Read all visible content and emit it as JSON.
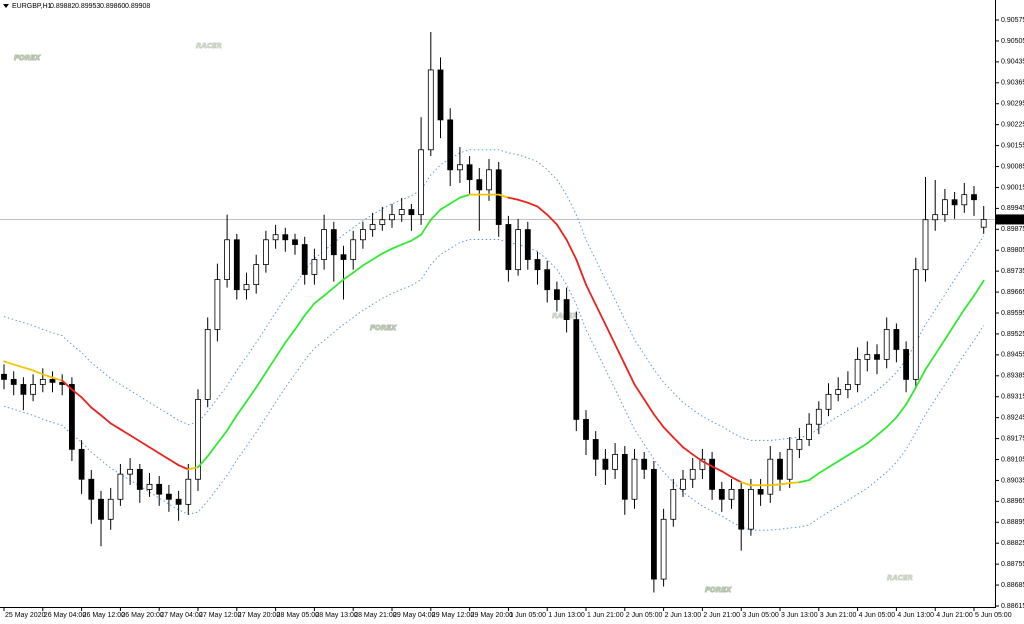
{
  "chart_data": {
    "type": "candlestick",
    "header": {
      "symbol": "EURGBP,H1",
      "ohlc": [
        "0.89882",
        "0.89953",
        "0.89860",
        "0.89908"
      ]
    },
    "watermark": {
      "brand": "FOREX",
      "tag": "RACER"
    },
    "categories": [
      "25 May 2020",
      null,
      null,
      null,
      "26 May 04:00",
      null,
      null,
      null,
      "26 May 12:00",
      null,
      null,
      null,
      "26 May 20:00",
      null,
      null,
      null,
      "27 May 04:00",
      null,
      null,
      null,
      "27 May 12:00",
      null,
      null,
      null,
      "27 May 20:00",
      null,
      null,
      null,
      "28 May 05:00",
      null,
      null,
      null,
      "28 May 13:00",
      null,
      null,
      null,
      "28 May 21:00",
      null,
      null,
      null,
      "29 May 04:00",
      null,
      null,
      null,
      "29 May 12:00",
      null,
      null,
      null,
      "29 May 20:00",
      null,
      null,
      null,
      "1 Jun 05:00",
      null,
      null,
      null,
      "1 Jun 13:00",
      null,
      null,
      null,
      "1 Jun 21:00",
      null,
      null,
      null,
      "2 Jun 05:00",
      null,
      null,
      null,
      "2 Jun 13:00",
      null,
      null,
      null,
      "2 Jun 21:00",
      null,
      null,
      null,
      "3 Jun 05:00",
      null,
      null,
      null,
      "3 Jun 13:00",
      null,
      null,
      null,
      "3 Jun 21:00",
      null,
      null,
      null,
      "4 Jun 05:00",
      null,
      null,
      null,
      "4 Jun 13:00",
      null,
      null,
      null,
      "4 Jun 21:00",
      null,
      null,
      null,
      "5 Jun 05:00",
      null
    ],
    "open": [
      0.8939,
      0.89373,
      0.89356,
      0.89323,
      0.89356,
      0.89373,
      0.89363,
      0.89356,
      0.89139,
      0.89039,
      0.88972,
      0.88905,
      0.88972,
      0.89056,
      0.89072,
      0.89005,
      0.89022,
      0.88989,
      0.88972,
      0.88955,
      0.89039,
      0.89306,
      0.8954,
      0.89707,
      0.8984,
      0.89673,
      0.8969,
      0.89757,
      0.8984,
      0.89857,
      0.8984,
      0.89824,
      0.89724,
      0.89774,
      0.89874,
      0.8979,
      0.89774,
      0.8984,
      0.89874,
      0.89891,
      0.89907,
      0.89924,
      0.89941,
      0.89924,
      0.90141,
      0.90408,
      0.90241,
      0.90074,
      0.90091,
      0.90041,
      0.90007,
      0.90074,
      0.89891,
      0.8974,
      0.89874,
      0.89774,
      0.8974,
      0.89673,
      0.8964,
      0.89573,
      0.89239,
      0.89172,
      0.89106,
      0.89072,
      0.89122,
      0.88972,
      0.89106,
      0.89072,
      0.88705,
      0.88905,
      0.89005,
      0.89039,
      0.89072,
      0.89106,
      0.89005,
      0.88972,
      0.89005,
      0.88872,
      0.89005,
      0.88989,
      0.89106,
      0.89039,
      0.89139,
      0.89172,
      0.89223,
      0.89273,
      0.89323,
      0.89339,
      0.89356,
      0.8944,
      0.89456,
      0.8944,
      0.8954,
      0.89473,
      0.89373,
      0.8974,
      0.89907,
      0.89924,
      0.89974,
      0.89957,
      0.89991,
      0.89882
    ],
    "high": [
      0.89423,
      0.894,
      0.8938,
      0.8939,
      0.8941,
      0.894,
      0.8939,
      0.8938,
      0.8917,
      0.8907,
      0.89,
      0.8901,
      0.8909,
      0.8911,
      0.8909,
      0.8906,
      0.8905,
      0.8902,
      0.89,
      0.8909,
      0.8934,
      0.8958,
      0.8976,
      0.89924,
      0.8986,
      0.8973,
      0.8979,
      0.8987,
      0.8989,
      0.8988,
      0.8986,
      0.8985,
      0.8981,
      0.89924,
      0.899,
      0.8982,
      0.8987,
      0.899,
      0.8993,
      0.8995,
      0.8996,
      0.8998,
      0.8996,
      0.9025,
      0.90535,
      0.9045,
      0.9028,
      0.9015,
      0.9012,
      0.9008,
      0.9011,
      0.901,
      0.8992,
      0.8991,
      0.899,
      0.898,
      0.8977,
      0.897,
      0.8968,
      0.896,
      0.8927,
      0.892,
      0.8914,
      0.8916,
      0.8915,
      0.8914,
      0.8913,
      0.891,
      0.8894,
      0.8904,
      0.8907,
      0.8911,
      0.8914,
      0.8913,
      0.8903,
      0.8904,
      0.8903,
      0.8904,
      0.8904,
      0.8915,
      0.8913,
      0.8918,
      0.8921,
      0.8926,
      0.893,
      0.8936,
      0.8938,
      0.894,
      0.8948,
      0.895,
      0.8949,
      0.8958,
      0.8956,
      0.895,
      0.8978,
      0.9005,
      0.9004,
      0.9001,
      0.9,
      0.9003,
      0.9002,
      0.89953
    ],
    "low": [
      0.8934,
      0.8932,
      0.8927,
      0.893,
      0.8933,
      0.8933,
      0.8932,
      0.891,
      0.8899,
      0.8889,
      0.88815,
      0.8887,
      0.8895,
      0.8902,
      0.8896,
      0.8898,
      0.8895,
      0.8893,
      0.889,
      0.8892,
      0.89,
      0.8928,
      0.895,
      0.8968,
      0.8964,
      0.8964,
      0.8966,
      0.8973,
      0.8981,
      0.898,
      0.8979,
      0.8969,
      0.8969,
      0.8974,
      0.897,
      0.8964,
      0.8974,
      0.8981,
      0.8985,
      0.8987,
      0.8988,
      0.899,
      0.8987,
      0.8989,
      0.9012,
      0.9018,
      0.9002,
      0.9003,
      0.8999,
      0.8987,
      0.8997,
      0.8985,
      0.897,
      0.8972,
      0.8974,
      0.8969,
      0.8963,
      0.896,
      0.8953,
      0.892,
      0.8912,
      0.8905,
      0.8902,
      0.8904,
      0.8892,
      0.8894,
      0.8904,
      0.8866,
      0.8868,
      0.8888,
      0.8898,
      0.8901,
      0.8904,
      0.8897,
      0.8893,
      0.8894,
      0.888,
      0.8885,
      0.8895,
      0.8896,
      0.89,
      0.8901,
      0.8911,
      0.8915,
      0.8919,
      0.8925,
      0.893,
      0.8931,
      0.8933,
      0.894,
      0.8939,
      0.8941,
      0.8943,
      0.8933,
      0.8935,
      0.897,
      0.8987,
      0.899,
      0.8991,
      0.8993,
      0.8992,
      0.8986
    ],
    "close": [
      0.89373,
      0.89356,
      0.89323,
      0.89356,
      0.89373,
      0.89363,
      0.89356,
      0.89139,
      0.89039,
      0.88972,
      0.88905,
      0.88972,
      0.89056,
      0.89072,
      0.89005,
      0.89022,
      0.88989,
      0.88972,
      0.88955,
      0.89039,
      0.89306,
      0.8954,
      0.89707,
      0.8984,
      0.89673,
      0.8969,
      0.89757,
      0.8984,
      0.89857,
      0.8984,
      0.89824,
      0.89724,
      0.89774,
      0.89874,
      0.8979,
      0.89774,
      0.8984,
      0.89874,
      0.89891,
      0.89907,
      0.89924,
      0.89941,
      0.89924,
      0.90141,
      0.90408,
      0.90241,
      0.90074,
      0.90091,
      0.90041,
      0.90007,
      0.90074,
      0.89891,
      0.8974,
      0.89874,
      0.89774,
      0.8974,
      0.89673,
      0.8964,
      0.89573,
      0.89239,
      0.89172,
      0.89106,
      0.89072,
      0.89122,
      0.88972,
      0.89106,
      0.89072,
      0.88705,
      0.88905,
      0.89005,
      0.89039,
      0.89072,
      0.89106,
      0.89005,
      0.88972,
      0.89005,
      0.88872,
      0.89005,
      0.88989,
      0.89106,
      0.89039,
      0.89139,
      0.89172,
      0.89223,
      0.89273,
      0.89323,
      0.89339,
      0.89356,
      0.8944,
      0.89456,
      0.8944,
      0.8954,
      0.89473,
      0.89373,
      0.8974,
      0.89907,
      0.89924,
      0.89974,
      0.89957,
      0.89991,
      0.89974,
      0.89908
    ],
    "up_color": "#ffffff",
    "down_color": "#000000",
    "wick_color": "#000000",
    "ma": {
      "values": [
        0.89433,
        0.89423,
        0.89413,
        0.89403,
        0.8939,
        0.89379,
        0.89369,
        0.89339,
        0.89313,
        0.89279,
        0.89253,
        0.89226,
        0.89206,
        0.89186,
        0.89166,
        0.89146,
        0.89126,
        0.89106,
        0.89086,
        0.89072,
        0.89079,
        0.89116,
        0.89159,
        0.89202,
        0.89253,
        0.89299,
        0.89346,
        0.89396,
        0.89446,
        0.89496,
        0.8954,
        0.89587,
        0.89627,
        0.89653,
        0.8968,
        0.89707,
        0.8973,
        0.89754,
        0.89774,
        0.89794,
        0.8981,
        0.89824,
        0.89837,
        0.89857,
        0.89907,
        0.89941,
        0.89961,
        0.89981,
        0.89991,
        0.89991,
        0.89991,
        0.89991,
        0.89981,
        0.89974,
        0.89964,
        0.89951,
        0.89924,
        0.89891,
        0.8984,
        0.89774,
        0.8969,
        0.89623,
        0.89557,
        0.8949,
        0.89423,
        0.89356,
        0.89306,
        0.89256,
        0.89213,
        0.89179,
        0.89146,
        0.89122,
        0.89099,
        0.89082,
        0.89066,
        0.89046,
        0.89029,
        0.89019,
        0.89019,
        0.89019,
        0.89022,
        0.89026,
        0.89029,
        0.89036,
        0.89059,
        0.89079,
        0.89099,
        0.89119,
        0.89139,
        0.89159,
        0.89186,
        0.89213,
        0.89246,
        0.89289,
        0.89346,
        0.89406,
        0.89456,
        0.89506,
        0.89557,
        0.89607,
        0.89653,
        0.89703
      ],
      "colors": [
        "#f5c400",
        "#f5c400",
        "#f5c400",
        "#f5c400",
        "#f5c400",
        "#f5c400",
        "#f5c400",
        "#e8231f",
        "#e8231f",
        "#e8231f",
        "#e8231f",
        "#e8231f",
        "#e8231f",
        "#e8231f",
        "#e8231f",
        "#e8231f",
        "#e8231f",
        "#e8231f",
        "#e8231f",
        "#e8231f",
        "#f5c400",
        "#33e833",
        "#33e833",
        "#33e833",
        "#33e833",
        "#33e833",
        "#33e833",
        "#33e833",
        "#33e833",
        "#33e833",
        "#33e833",
        "#33e833",
        "#33e833",
        "#33e833",
        "#33e833",
        "#33e833",
        "#33e833",
        "#33e833",
        "#33e833",
        "#33e833",
        "#33e833",
        "#33e833",
        "#33e833",
        "#33e833",
        "#33e833",
        "#33e833",
        "#33e833",
        "#33e833",
        "#33e833",
        "#f5c400",
        "#f5c400",
        "#f5c400",
        "#f5c400",
        "#e8231f",
        "#e8231f",
        "#e8231f",
        "#e8231f",
        "#e8231f",
        "#e8231f",
        "#e8231f",
        "#e8231f",
        "#e8231f",
        "#e8231f",
        "#e8231f",
        "#e8231f",
        "#e8231f",
        "#e8231f",
        "#e8231f",
        "#e8231f",
        "#e8231f",
        "#e8231f",
        "#e8231f",
        "#e8231f",
        "#e8231f",
        "#e8231f",
        "#e8231f",
        "#e8231f",
        "#f5c400",
        "#f5c400",
        "#f5c400",
        "#f5c400",
        "#f5c400",
        "#f5c400",
        "#33e833",
        "#33e833",
        "#33e833",
        "#33e833",
        "#33e833",
        "#33e833",
        "#33e833",
        "#33e833",
        "#33e833",
        "#33e833",
        "#33e833",
        "#33e833",
        "#33e833",
        "#33e833",
        "#33e833",
        "#33e833",
        "#33e833",
        "#33e833",
        "#33e833"
      ]
    },
    "upper_band": {
      "color": "#5b9bd5",
      "values": [
        0.89583,
        0.89573,
        0.89563,
        0.89553,
        0.8954,
        0.89529,
        0.89519,
        0.89489,
        0.89463,
        0.89429,
        0.89403,
        0.89376,
        0.89356,
        0.89336,
        0.89316,
        0.89296,
        0.89276,
        0.89256,
        0.89236,
        0.89222,
        0.89229,
        0.89266,
        0.89309,
        0.89352,
        0.89403,
        0.89449,
        0.89496,
        0.89546,
        0.89596,
        0.89646,
        0.8969,
        0.89737,
        0.89777,
        0.89803,
        0.8983,
        0.89857,
        0.8988,
        0.89904,
        0.89924,
        0.89944,
        0.8996,
        0.89974,
        0.89987,
        0.90007,
        0.90057,
        0.90091,
        0.90111,
        0.90131,
        0.90141,
        0.90141,
        0.90141,
        0.90141,
        0.90131,
        0.90124,
        0.90114,
        0.90101,
        0.90074,
        0.90041,
        0.8999,
        0.89924,
        0.8984,
        0.89773,
        0.89707,
        0.8964,
        0.89573,
        0.89506,
        0.89456,
        0.89406,
        0.89363,
        0.89329,
        0.89296,
        0.89272,
        0.89249,
        0.89232,
        0.89216,
        0.89196,
        0.89179,
        0.89169,
        0.89169,
        0.89169,
        0.89172,
        0.89176,
        0.89179,
        0.89186,
        0.89209,
        0.89229,
        0.89249,
        0.89269,
        0.89289,
        0.89309,
        0.89336,
        0.89363,
        0.89396,
        0.89439,
        0.89496,
        0.89556,
        0.89606,
        0.89656,
        0.89707,
        0.89757,
        0.89803,
        0.89853
      ]
    },
    "lower_band": {
      "color": "#5b9bd5",
      "values": [
        0.89283,
        0.89273,
        0.89263,
        0.89253,
        0.8924,
        0.89229,
        0.89219,
        0.89189,
        0.89163,
        0.89129,
        0.89103,
        0.89076,
        0.89056,
        0.89036,
        0.89016,
        0.88996,
        0.88976,
        0.88956,
        0.88936,
        0.88922,
        0.88929,
        0.88966,
        0.89009,
        0.89052,
        0.89103,
        0.89149,
        0.89196,
        0.89246,
        0.89296,
        0.89346,
        0.8939,
        0.89437,
        0.89477,
        0.89503,
        0.8953,
        0.89557,
        0.8958,
        0.89604,
        0.89624,
        0.89644,
        0.8966,
        0.89674,
        0.89687,
        0.89707,
        0.89757,
        0.89791,
        0.89811,
        0.89831,
        0.89841,
        0.89841,
        0.89841,
        0.89841,
        0.89831,
        0.89824,
        0.89814,
        0.89801,
        0.89774,
        0.89741,
        0.8969,
        0.89624,
        0.8954,
        0.89473,
        0.89407,
        0.8934,
        0.89273,
        0.89206,
        0.89156,
        0.89106,
        0.89063,
        0.89029,
        0.88996,
        0.88972,
        0.88949,
        0.88932,
        0.88916,
        0.88896,
        0.88879,
        0.88869,
        0.88869,
        0.88869,
        0.88872,
        0.88876,
        0.88879,
        0.88886,
        0.88909,
        0.88929,
        0.88949,
        0.88969,
        0.88989,
        0.89009,
        0.89036,
        0.89063,
        0.89096,
        0.89139,
        0.89196,
        0.89256,
        0.89306,
        0.89356,
        0.89407,
        0.89457,
        0.89503,
        0.89553
      ]
    },
    "price_line_color": "#c0c0c0",
    "ylim": [
      0.88615,
      0.90642
    ],
    "yticks": [
      0.90575,
      0.90505,
      0.90435,
      0.90365,
      0.90295,
      0.90225,
      0.90155,
      0.90085,
      0.90015,
      0.89945,
      0.89875,
      0.89805,
      0.89735,
      0.89665,
      0.89595,
      0.89525,
      0.89455,
      0.89385,
      0.89315,
      0.89245,
      0.89175,
      0.89105,
      0.89035,
      0.88965,
      0.88895,
      0.88825,
      0.88755,
      0.88685,
      0.88615
    ],
    "grid": false
  }
}
